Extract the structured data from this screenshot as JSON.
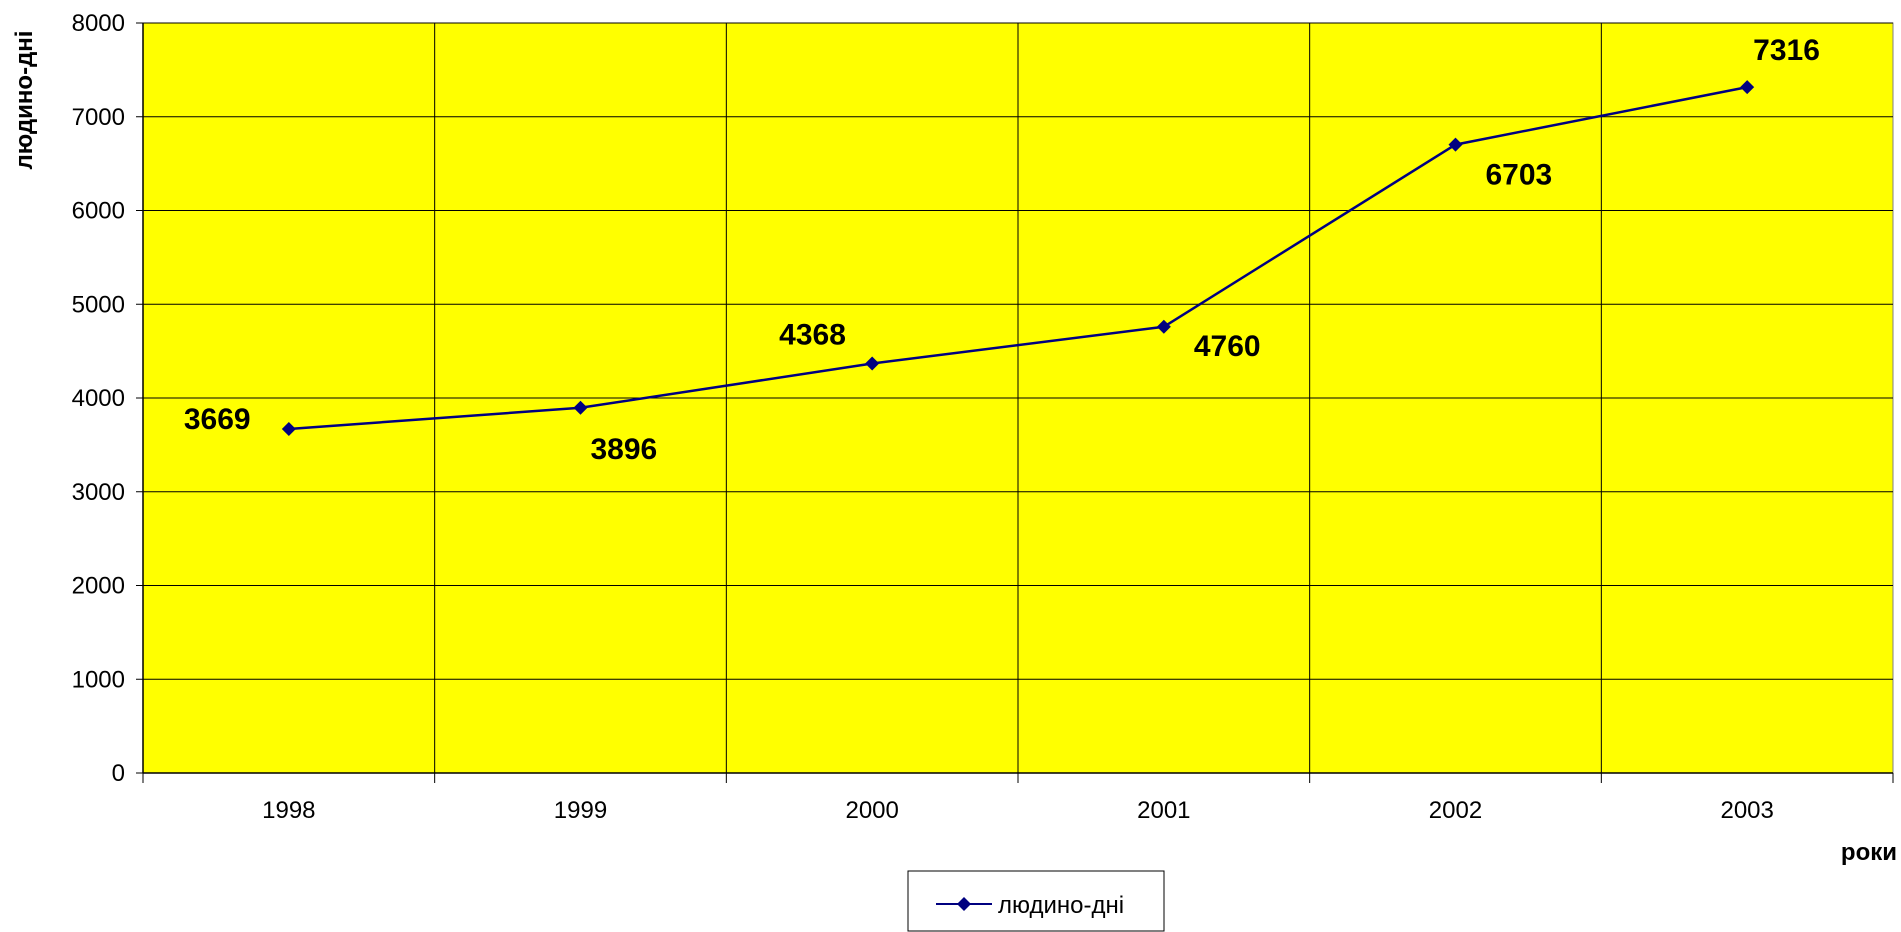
{
  "chart_data": {
    "type": "line",
    "title": "",
    "xlabel": "роки",
    "ylabel": "людино-дні",
    "categories": [
      "1998",
      "1999",
      "2000",
      "2001",
      "2002",
      "2003"
    ],
    "series": [
      {
        "name": "людино-дні",
        "values": [
          3669,
          3896,
          4368,
          4760,
          6703,
          7316
        ],
        "color": "#000080",
        "marker": "diamond"
      }
    ],
    "data_labels": [
      "3669",
      "3896",
      "4368",
      "4760",
      "6703",
      "7316"
    ],
    "ylim": [
      0,
      8000
    ],
    "yticks": [
      0,
      1000,
      2000,
      3000,
      4000,
      5000,
      6000,
      7000,
      8000
    ],
    "grid": true,
    "plot_background": "#FFFF00",
    "legend_position": "bottom-center"
  }
}
